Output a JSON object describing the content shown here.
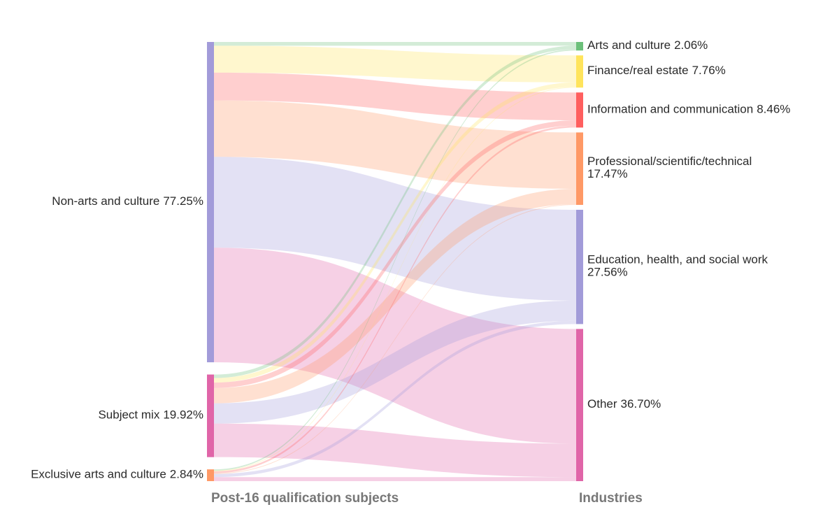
{
  "chart_data": {
    "type": "sankey",
    "source_title": "Post-16 qualification subjects",
    "target_title": "Industries",
    "link_opacity": 0.3,
    "nodes": [
      {
        "name": "Non-arts and culture",
        "value": 77.25,
        "value_label": "77.25%",
        "color": "#a29bd9",
        "column": 0
      },
      {
        "name": "Subject mix",
        "value": 19.92,
        "value_label": "19.92%",
        "color": "#e065a8",
        "column": 0
      },
      {
        "name": "Exclusive arts and culture",
        "value": 2.84,
        "value_label": "2.84%",
        "color": "#ff9966",
        "column": 0
      },
      {
        "name": "Arts and culture",
        "value": 2.06,
        "value_label": "2.06%",
        "color": "#6cc07a",
        "column": 1
      },
      {
        "name": "Finance/real estate",
        "value": 7.76,
        "value_label": "7.76%",
        "color": "#ffe45c",
        "column": 1
      },
      {
        "name": "Information and communication",
        "value": 8.46,
        "value_label": "8.46%",
        "color": "#ff5f5f",
        "column": 1
      },
      {
        "name": "Professional/scientific/technical",
        "value": 17.47,
        "value_label": "17.47%",
        "color": "#ff9966",
        "column": 1
      },
      {
        "name": "Education, health, and social work",
        "value": 27.56,
        "value_label": "27.56%",
        "color": "#a29bd9",
        "column": 1
      },
      {
        "name": "Other",
        "value": 36.7,
        "value_label": "36.70%",
        "color": "#e065a8",
        "column": 1
      }
    ],
    "links": [
      {
        "source": 0,
        "target": 3,
        "value": 0.9
      },
      {
        "source": 0,
        "target": 4,
        "value": 6.5
      },
      {
        "source": 0,
        "target": 5,
        "value": 6.7
      },
      {
        "source": 0,
        "target": 6,
        "value": 13.6
      },
      {
        "source": 0,
        "target": 7,
        "value": 21.9
      },
      {
        "source": 0,
        "target": 8,
        "value": 27.65
      },
      {
        "source": 1,
        "target": 3,
        "value": 0.85
      },
      {
        "source": 1,
        "target": 4,
        "value": 1.1
      },
      {
        "source": 1,
        "target": 5,
        "value": 1.3
      },
      {
        "source": 1,
        "target": 6,
        "value": 3.7
      },
      {
        "source": 1,
        "target": 7,
        "value": 4.9
      },
      {
        "source": 1,
        "target": 8,
        "value": 8.07
      },
      {
        "source": 2,
        "target": 3,
        "value": 0.31
      },
      {
        "source": 2,
        "target": 4,
        "value": 0.16
      },
      {
        "source": 2,
        "target": 5,
        "value": 0.46
      },
      {
        "source": 2,
        "target": 6,
        "value": 0.17
      },
      {
        "source": 2,
        "target": 7,
        "value": 0.76
      },
      {
        "source": 2,
        "target": 8,
        "value": 0.98
      }
    ]
  }
}
